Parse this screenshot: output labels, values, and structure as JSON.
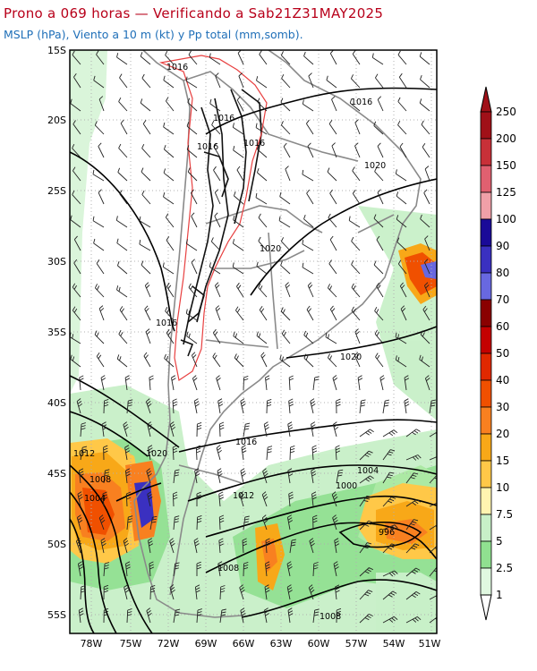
{
  "header": {
    "title": "Prono a 069 horas — Verificando a Sab21Z31MAY2025",
    "subtitle": "MSLP (hPa), Viento a 10 m (kt) y Pp total (mm,somb)."
  },
  "map": {
    "lat_ticks": [
      "15S",
      "20S",
      "25S",
      "30S",
      "35S",
      "40S",
      "45S",
      "50S",
      "55S"
    ],
    "lon_ticks": [
      "78W",
      "75W",
      "72W",
      "69W",
      "66W",
      "63W",
      "60W",
      "57W",
      "54W",
      "51W"
    ],
    "isobar_labels": [
      {
        "id": "n-1016",
        "text": "1016"
      },
      {
        "id": "andes-1016a",
        "text": "1016"
      },
      {
        "id": "andes-1016b",
        "text": "1016"
      },
      {
        "id": "andes-1016c",
        "text": "1016"
      },
      {
        "id": "ne-1016",
        "text": "1016"
      },
      {
        "id": "e-1020",
        "text": "1020"
      },
      {
        "id": "c-1020",
        "text": "1020"
      },
      {
        "id": "w-1016",
        "text": "1016"
      },
      {
        "id": "se-1020",
        "text": "1020"
      },
      {
        "id": "pat-1016",
        "text": "1016"
      },
      {
        "id": "pat-1020",
        "text": "1020"
      },
      {
        "id": "w-1012",
        "text": "1012"
      },
      {
        "id": "w-1008",
        "text": "1008"
      },
      {
        "id": "w-1004",
        "text": "1004"
      },
      {
        "id": "c-1012",
        "text": "1012"
      },
      {
        "id": "s-1004",
        "text": "1004"
      },
      {
        "id": "s-1000",
        "text": "1000"
      },
      {
        "id": "low-996",
        "text": "996"
      },
      {
        "id": "sw-1008",
        "text": "1008"
      },
      {
        "id": "ss-1008",
        "text": "1008"
      }
    ]
  },
  "colorbar": {
    "labels": [
      "250",
      "200",
      "150",
      "125",
      "100",
      "90",
      "80",
      "70",
      "60",
      "50",
      "40",
      "30",
      "20",
      "15",
      "10",
      "7.5",
      "5",
      "2.5",
      "1"
    ],
    "colors": [
      "#a01018",
      "#c83038",
      "#e06070",
      "#f0a0a8",
      "#1a0a98",
      "#3a30c0",
      "#6868e0",
      "#8a0000",
      "#c40000",
      "#e02800",
      "#f05000",
      "#f88020",
      "#f8a818",
      "#ffc848",
      "#fff4b0",
      "#c8f0c8",
      "#90e090",
      "#e0f8e0"
    ]
  }
}
